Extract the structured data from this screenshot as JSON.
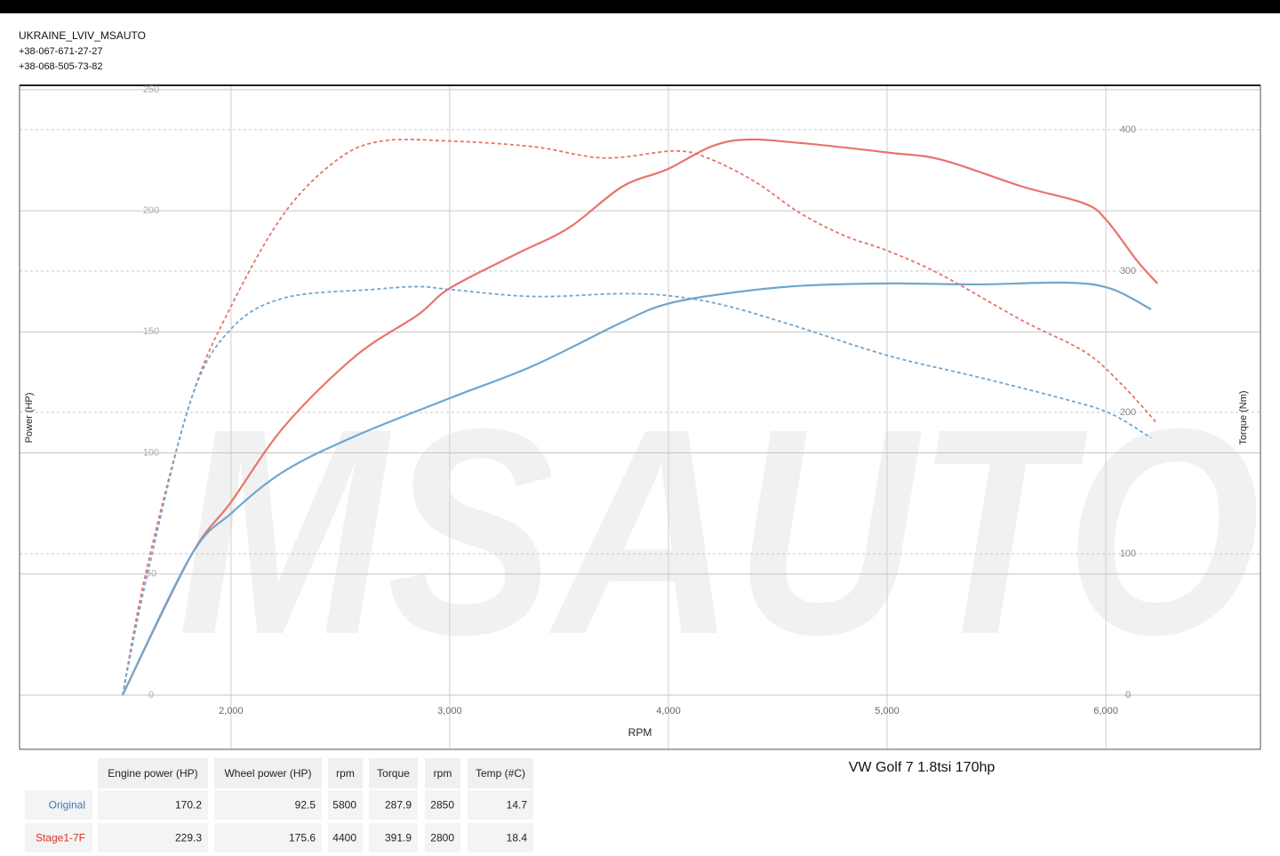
{
  "header": {
    "lines": [
      "UKRAINE_LVIV_MSAUTO",
      "+38-067-671-27-27",
      "+38-068-505-73-82"
    ]
  },
  "chart_data": {
    "type": "line",
    "title": "VW Golf 7 1.8tsi 170hp",
    "watermark": "MSAUTO",
    "x_label": "RPM",
    "y_label": "Power (HP)",
    "y2_label": "Torque (Nm)",
    "xlim": [
      1033,
      6707
    ],
    "xticks": [
      {
        "value": 2000,
        "label": "2,000"
      },
      {
        "value": 3000,
        "label": "3,000"
      },
      {
        "value": 4000,
        "label": "4,000"
      },
      {
        "value": 5000,
        "label": "5,000"
      },
      {
        "value": 6000,
        "label": "6,000"
      }
    ],
    "ylim": [
      -22.4,
      251.8
    ],
    "yticks": [
      0,
      50,
      100,
      150,
      200,
      250
    ],
    "y2lim": [
      -38.4,
      431.4
    ],
    "y2ticks": [
      0,
      100,
      200,
      300,
      400
    ],
    "grid": true,
    "series": [
      {
        "color": "#e8736c",
        "dash": false,
        "axis": "y",
        "x": [
          1504,
          1817,
          2000,
          2244,
          2569,
          2854,
          3000,
          3301,
          3545,
          3789,
          3992,
          4195,
          4358,
          4602,
          5008,
          5252,
          5618,
          5902,
          6004,
          6146,
          6236
        ],
        "values": [
          0,
          57.6,
          79.7,
          111,
          140,
          157,
          168,
          182,
          193,
          210,
          217,
          226.5,
          229.4,
          228,
          224,
          221,
          210,
          203,
          196,
          179,
          170
        ]
      },
      {
        "color": "#e8736c",
        "dash": true,
        "axis": "y2",
        "x": [
          1504,
          1614,
          1817,
          2000,
          2244,
          2488,
          2691,
          3000,
          3382,
          3707,
          4033,
          4195,
          4398,
          4602,
          4805,
          5008,
          5252,
          5618,
          5902,
          6065,
          6236
        ],
        "values": [
          0,
          89,
          209,
          275,
          341,
          379,
          392,
          392,
          388,
          380,
          385,
          379,
          363,
          341,
          325,
          314,
          297,
          265,
          243,
          221,
          192
        ]
      },
      {
        "color": "#6fa6cf",
        "dash": false,
        "axis": "y",
        "x": [
          1504,
          1817,
          2000,
          2244,
          2569,
          3000,
          3382,
          3789,
          3992,
          4276,
          4602,
          5008,
          5415,
          5821,
          6024,
          6207
        ],
        "values": [
          0,
          57.6,
          75,
          92.5,
          107,
          122.6,
          136,
          154,
          161.5,
          166,
          169,
          170,
          169.6,
          170.3,
          167.8,
          159.3
        ]
      },
      {
        "color": "#6fa6cf",
        "dash": true,
        "axis": "y2",
        "x": [
          1504,
          1614,
          1817,
          2000,
          2244,
          2650,
          2854,
          3000,
          3382,
          3789,
          4033,
          4276,
          4602,
          5008,
          5415,
          5821,
          6024,
          6207
        ],
        "values": [
          0,
          83,
          209,
          259,
          281,
          287,
          289,
          287,
          282,
          284,
          282,
          275,
          260,
          240,
          225,
          209,
          199,
          182
        ]
      }
    ]
  },
  "table": {
    "header": [
      "Engine power (HP)",
      "Wheel power (HP)",
      "rpm",
      "Torque",
      "rpm",
      "Temp (#C)"
    ],
    "rows": [
      {
        "name": "Original",
        "color": "#3a78b5",
        "cells": [
          170.2,
          92.5,
          5800,
          287.9,
          2850,
          14.7
        ]
      },
      {
        "name": "Stage1-7F",
        "color": "#d9302c",
        "cells": [
          229.3,
          175.6,
          4400,
          391.9,
          2800,
          18.4
        ]
      }
    ]
  }
}
